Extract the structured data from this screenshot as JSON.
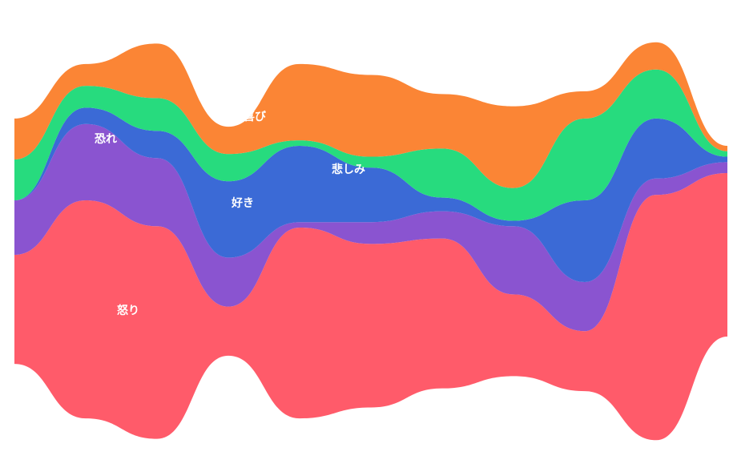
{
  "chart_data": {
    "type": "area",
    "subtype": "streamgraph",
    "x": [
      0,
      1,
      2,
      3,
      4,
      5,
      6,
      7,
      8,
      9,
      10
    ],
    "series": [
      {
        "name": "怒り",
        "color": "#ff5b6a",
        "values": [
          40,
          80,
          78,
          18,
          70,
          60,
          55,
          30,
          22,
          90,
          60
        ]
      },
      {
        "name": "恐れ",
        "color": "#8a54d0",
        "values": [
          20,
          28,
          25,
          18,
          2,
          8,
          10,
          25,
          18,
          6,
          4
        ]
      },
      {
        "name": "悲しみ",
        "color": "#3b6ad6",
        "values": [
          0,
          6,
          10,
          28,
          28,
          20,
          5,
          2,
          30,
          22,
          2
        ]
      },
      {
        "name": "好き",
        "color": "#27db7e",
        "values": [
          15,
          8,
          12,
          10,
          2,
          4,
          18,
          12,
          30,
          18,
          2
        ]
      },
      {
        "name": "喜び",
        "color": "#fb8535",
        "values": [
          15,
          8,
          20,
          10,
          28,
          30,
          20,
          30,
          10,
          10,
          2
        ]
      }
    ],
    "labels_shown": [
      "恐れ",
      "喜び",
      "好き",
      "悲しみ",
      "怒り"
    ],
    "legend": "none",
    "grid": false
  }
}
